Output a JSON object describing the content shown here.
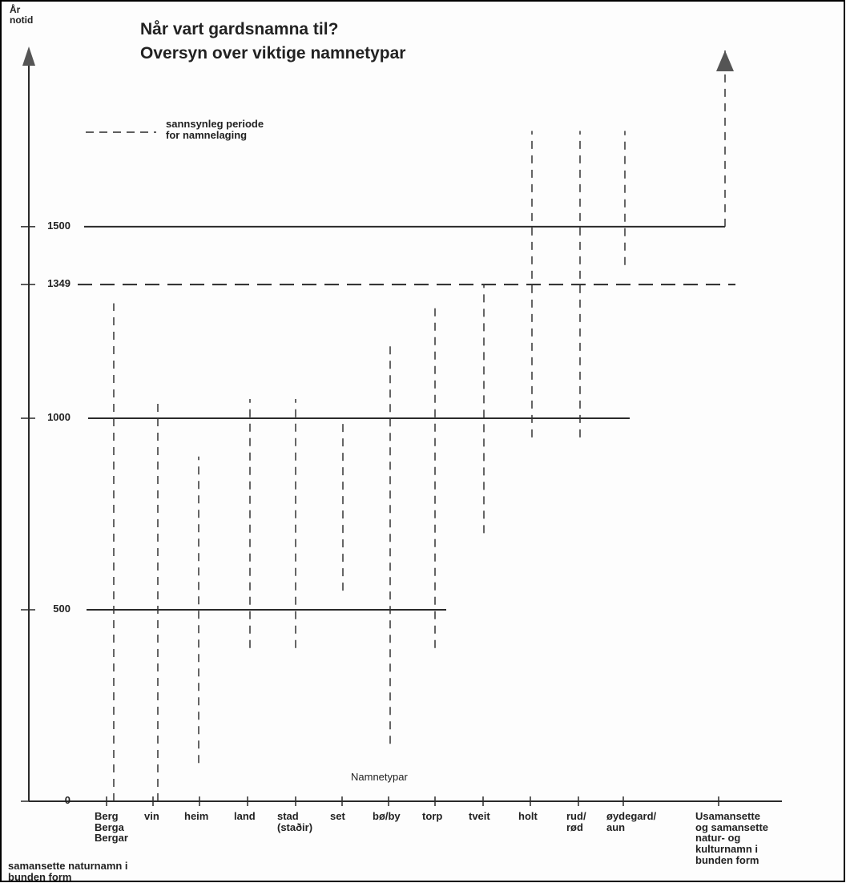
{
  "chart_data": {
    "type": "range",
    "title": "Når vart gardsnamna til?\nOversyn over viktige namnetypar",
    "y_label": "År\nnotid",
    "x_label": "Namnetypar",
    "note": "samansette naturnamn i\nbunden form",
    "categories": [
      "Berg\nBerga\nBergar",
      "vin",
      "heim",
      "land",
      "stad\n(staðir)",
      "set",
      "bø/by",
      "torp",
      "tveit",
      "holt",
      "rud/\nrød",
      "øydegard/\naun",
      "Usamansette\nog samansette\nnatur- og\nkulturnamn i\nbunden form"
    ],
    "series": [
      {
        "name": "sannsynleg periode\nfor namnelaging",
        "color": "#333333",
        "values": [
          [
            0,
            1300
          ],
          [
            0,
            1050
          ],
          [
            100,
            900
          ],
          [
            400,
            1050
          ],
          [
            400,
            1050
          ],
          [
            550,
            1000
          ],
          [
            150,
            1200
          ],
          [
            400,
            1300
          ],
          [
            700,
            1349
          ],
          [
            950,
            1750
          ],
          [
            950,
            1750
          ],
          [
            1400,
            1750
          ],
          [
            1500,
            1960
          ]
        ]
      }
    ],
    "ylim": [
      0,
      1960
    ],
    "yticks": [
      0,
      500,
      1000,
      1349,
      1500
    ],
    "reference_lines": [
      {
        "value": 500,
        "style": "solid"
      },
      {
        "value": 1000,
        "style": "solid"
      },
      {
        "value": 1349,
        "style": "dashed"
      },
      {
        "value": 1500,
        "style": "solid"
      }
    ]
  }
}
